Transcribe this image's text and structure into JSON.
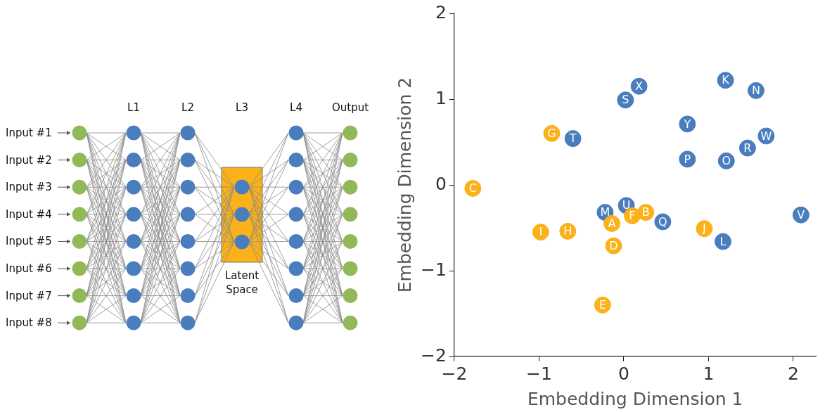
{
  "chart_data": {
    "type": "scatter",
    "annotations": [
      "Input #1",
      "Input #2",
      "Input #3",
      "Input #4",
      "Input #5",
      "Input #6",
      "Input #7",
      "Input #8",
      "L1",
      "L2",
      "L3",
      "L4",
      "Output",
      "Latent Space"
    ],
    "xlabel": "Embedding Dimension 1",
    "ylabel": "Embedding Dimension 2",
    "xlim": [
      -2,
      2.27
    ],
    "xticks": [
      {
        "value": -2,
        "label": "−2"
      },
      {
        "value": -1,
        "label": "−1"
      },
      0,
      1,
      2
    ],
    "ylim": [
      -2,
      2
    ],
    "yticks": [
      {
        "value": -2,
        "label": "−2"
      },
      {
        "value": -1,
        "label": "−1"
      },
      0,
      1,
      2
    ],
    "grid": false,
    "legend": false,
    "marker": "circle",
    "series": [
      {
        "color": "#fbb21a",
        "x": [
          -0.85,
          -1.78,
          -0.98,
          -0.66,
          -0.14,
          0.1,
          0.26,
          -0.12,
          -0.25,
          0.95
        ],
        "values": [
          0.6,
          -0.04,
          -0.55,
          -0.54,
          -0.45,
          -0.36,
          -0.32,
          -0.71,
          -1.4,
          -0.51
        ],
        "value_labels": [
          "G",
          "C",
          "I",
          "H",
          "A",
          "F",
          "B",
          "D",
          "E",
          "J"
        ]
      },
      {
        "color": "#4a7dbd",
        "x": [
          -0.6,
          0.02,
          0.18,
          1.2,
          1.56,
          0.75,
          1.68,
          1.46,
          0.75,
          1.21,
          -0.22,
          0.03,
          0.46,
          1.17,
          2.09
        ],
        "values": [
          0.54,
          0.99,
          1.15,
          1.22,
          1.1,
          0.71,
          0.57,
          0.43,
          0.3,
          0.28,
          -0.32,
          -0.24,
          -0.43,
          -0.66,
          -0.35
        ],
        "value_labels": [
          "T",
          "S",
          "X",
          "K",
          "N",
          "Y",
          "W",
          "R",
          "P",
          "O",
          "M",
          "U",
          "Q",
          "L",
          "V"
        ]
      }
    ]
  }
}
